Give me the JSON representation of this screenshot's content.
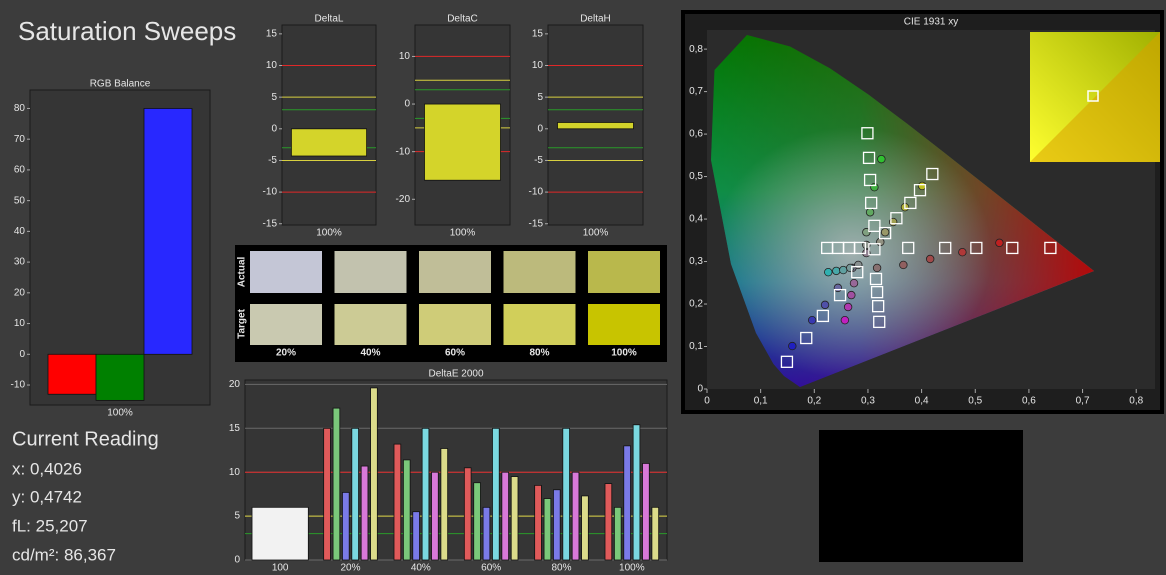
{
  "title": "Saturation Sweeps",
  "chart_data": [
    {
      "type": "bar",
      "title": "RGB Balance",
      "categories": [
        "100%"
      ],
      "series": [
        {
          "color": "#ff0000",
          "values": [
            -13
          ]
        },
        {
          "color": "#008000",
          "values": [
            -15
          ]
        },
        {
          "color": "#2828ff",
          "values": [
            80
          ]
        }
      ],
      "ylim": [
        -16.5,
        86
      ],
      "yticks": [
        -10,
        0,
        10,
        20,
        30,
        40,
        50,
        60,
        70,
        80
      ],
      "grid": false
    },
    {
      "type": "bar",
      "title": "DeltaL",
      "categories": [
        "100%"
      ],
      "values": [
        -4.3
      ],
      "color": "#d4d42a",
      "ylim": [
        -15.2,
        16.4
      ],
      "yticks": [
        -15,
        -10,
        -5,
        0,
        5,
        10,
        15
      ],
      "grid": false,
      "reference_lines": [
        {
          "value": 10,
          "color": "#e02828"
        },
        {
          "value": -10,
          "color": "#e02828"
        },
        {
          "value": 5,
          "color": "#d8d040"
        },
        {
          "value": -5,
          "color": "#d8d040"
        },
        {
          "value": 3,
          "color": "#2a9a2a"
        },
        {
          "value": -3,
          "color": "#2a9a2a"
        }
      ]
    },
    {
      "type": "bar",
      "title": "DeltaC",
      "categories": [
        "100%"
      ],
      "values": [
        -16
      ],
      "color": "#d4d42a",
      "ylim": [
        -25.4,
        16.6
      ],
      "yticks": [
        -20,
        -10,
        0,
        10
      ],
      "grid": false,
      "reference_lines": [
        {
          "value": 10,
          "color": "#e02828"
        },
        {
          "value": -10,
          "color": "#e02828"
        },
        {
          "value": 5,
          "color": "#d8d040"
        },
        {
          "value": -5,
          "color": "#d8d040"
        },
        {
          "value": 3,
          "color": "#2a9a2a"
        },
        {
          "value": -3,
          "color": "#2a9a2a"
        }
      ]
    },
    {
      "type": "bar",
      "title": "DeltaH",
      "categories": [
        "100%"
      ],
      "values": [
        1
      ],
      "color": "#d4d42a",
      "ylim": [
        -15.2,
        16.4
      ],
      "yticks": [
        -15,
        -10,
        -5,
        0,
        5,
        10,
        15
      ],
      "grid": false,
      "reference_lines": [
        {
          "value": 10,
          "color": "#e02828"
        },
        {
          "value": -10,
          "color": "#e02828"
        },
        {
          "value": 5,
          "color": "#d8d040"
        },
        {
          "value": -5,
          "color": "#d8d040"
        },
        {
          "value": 3,
          "color": "#2a9a2a"
        },
        {
          "value": -3,
          "color": "#2a9a2a"
        }
      ]
    },
    {
      "type": "bar",
      "title": "DeltaE 2000",
      "categories": [
        "100",
        "20%",
        "40%",
        "60%",
        "80%",
        "100%"
      ],
      "series": [
        {
          "color": "#f2f2f2",
          "values": [
            6,
            null,
            null,
            null,
            null,
            null
          ]
        },
        {
          "color": "#e05a5a",
          "values": [
            null,
            15,
            13.2,
            10.5,
            8.5,
            8.7
          ]
        },
        {
          "color": "#7ac87a",
          "values": [
            null,
            17.3,
            11.4,
            8.8,
            7,
            6
          ]
        },
        {
          "color": "#7a7ae8",
          "values": [
            null,
            7.7,
            5.5,
            6,
            8,
            13
          ]
        },
        {
          "color": "#7ad8e0",
          "values": [
            null,
            15,
            15,
            15,
            15,
            15.4
          ]
        },
        {
          "color": "#d878d8",
          "values": [
            null,
            10.7,
            10,
            10,
            10,
            11
          ]
        },
        {
          "color": "#dcdc8a",
          "values": [
            null,
            19.6,
            12.7,
            9.5,
            7.3,
            6
          ]
        }
      ],
      "ylim": [
        0,
        20.5
      ],
      "yticks": [
        0,
        5,
        10,
        15,
        20
      ],
      "grid": true,
      "reference_lines": [
        {
          "value": 10,
          "color": "#e02828"
        },
        {
          "value": 5,
          "color": "#d8d040"
        },
        {
          "value": 3,
          "color": "#2a9a2a"
        }
      ]
    },
    {
      "type": "scatter",
      "title": "CIE 1931 xy",
      "xlim": [
        0,
        0.835
      ],
      "ylim": [
        0,
        0.845
      ],
      "xticks": [
        0,
        {
          "value": 0.1,
          "label": "0,1"
        },
        {
          "value": 0.2,
          "label": "0,2"
        },
        {
          "value": 0.3,
          "label": "0,3"
        },
        {
          "value": 0.4,
          "label": "0,4"
        },
        {
          "value": 0.5,
          "label": "0,5"
        },
        {
          "value": 0.6,
          "label": "0,6"
        },
        {
          "value": 0.7,
          "label": "0,7"
        },
        {
          "value": 0.8,
          "label": "0,8"
        }
      ],
      "yticks": [
        0,
        {
          "value": 0.1,
          "label": "0,1"
        },
        {
          "value": 0.2,
          "label": "0,2"
        },
        {
          "value": 0.3,
          "label": "0,3"
        },
        {
          "value": 0.4,
          "label": "0,4"
        },
        {
          "value": 0.5,
          "label": "0,5"
        },
        {
          "value": 0.6,
          "label": "0,6"
        },
        {
          "value": 0.7,
          "label": "0,7"
        },
        {
          "value": 0.8,
          "label": "0,8"
        }
      ],
      "series": [
        {
          "marker": "circle",
          "x": [
            0.545,
            0.476,
            0.416,
            0.366,
            0.317,
            0.325,
            0.312,
            0.304,
            0.297,
            0.297,
            0.159,
            0.196,
            0.22,
            0.244,
            0.271,
            0.226,
            0.241,
            0.254,
            0.267,
            0.282,
            0.257,
            0.263,
            0.269,
            0.274,
            0.297,
            0.401,
            0.369,
            0.347,
            0.332,
            0.323
          ],
          "y": [
            0.344,
            0.322,
            0.306,
            0.292,
            0.285,
            0.541,
            0.475,
            0.416,
            0.369,
            0.339,
            0.101,
            0.162,
            0.198,
            0.238,
            0.285,
            0.275,
            0.278,
            0.28,
            0.285,
            0.292,
            0.162,
            0.193,
            0.221,
            0.249,
            0.32,
            0.478,
            0.428,
            0.393,
            0.369,
            0.346
          ],
          "colors": [
            "#c02020",
            "#b03838",
            "#a04a4a",
            "#906060",
            "#887070",
            "#30c030",
            "#40b040",
            "#60a860",
            "#80a080",
            "#909890",
            "#2020c0",
            "#3838b0",
            "#5050a8",
            "#6868a0",
            "#808098",
            "#30b0b0",
            "#48a8a8",
            "#60a0a0",
            "#789898",
            "#889090",
            "#c020c0",
            "#b038b0",
            "#a050a0",
            "#986898",
            "#908090",
            "#c0c020",
            "#b0b038",
            "#a0a050",
            "#989868",
            "#909080"
          ]
        },
        {
          "marker": "square",
          "x": [
            0.64,
            0.569,
            0.502,
            0.444,
            0.375,
            0.299,
            0.302,
            0.304,
            0.306,
            0.312,
            0.149,
            0.185,
            0.216,
            0.248,
            0.28,
            0.224,
            0.244,
            0.265,
            0.285,
            0.312,
            0.321,
            0.319,
            0.317,
            0.315,
            0.42,
            0.397,
            0.379,
            0.353,
            0.332
          ],
          "y": [
            0.332,
            0.332,
            0.332,
            0.332,
            0.332,
            0.602,
            0.544,
            0.492,
            0.438,
            0.384,
            0.064,
            0.12,
            0.172,
            0.221,
            0.275,
            0.332,
            0.332,
            0.332,
            0.332,
            0.329,
            0.158,
            0.195,
            0.228,
            0.259,
            0.506,
            0.468,
            0.438,
            0.402,
            0.367
          ]
        }
      ]
    }
  ],
  "swatches": {
    "row_labels": [
      "Actual",
      "Target"
    ],
    "columns": [
      "20%",
      "40%",
      "60%",
      "80%",
      "100%"
    ],
    "actual_colors": [
      "#c4c6d6",
      "#c2c2ae",
      "#c0be98",
      "#bcba7c",
      "#b9b84c"
    ],
    "target_colors": [
      "#c9c9b0",
      "#cccb95",
      "#cfcc78",
      "#d1cf5a",
      "#c8c400"
    ]
  },
  "current_reading": {
    "heading": "Current Reading",
    "lines": [
      "x: 0,4026",
      "y: 0,4742",
      "fL: 25,207",
      "cd/m²: 86,367"
    ]
  }
}
